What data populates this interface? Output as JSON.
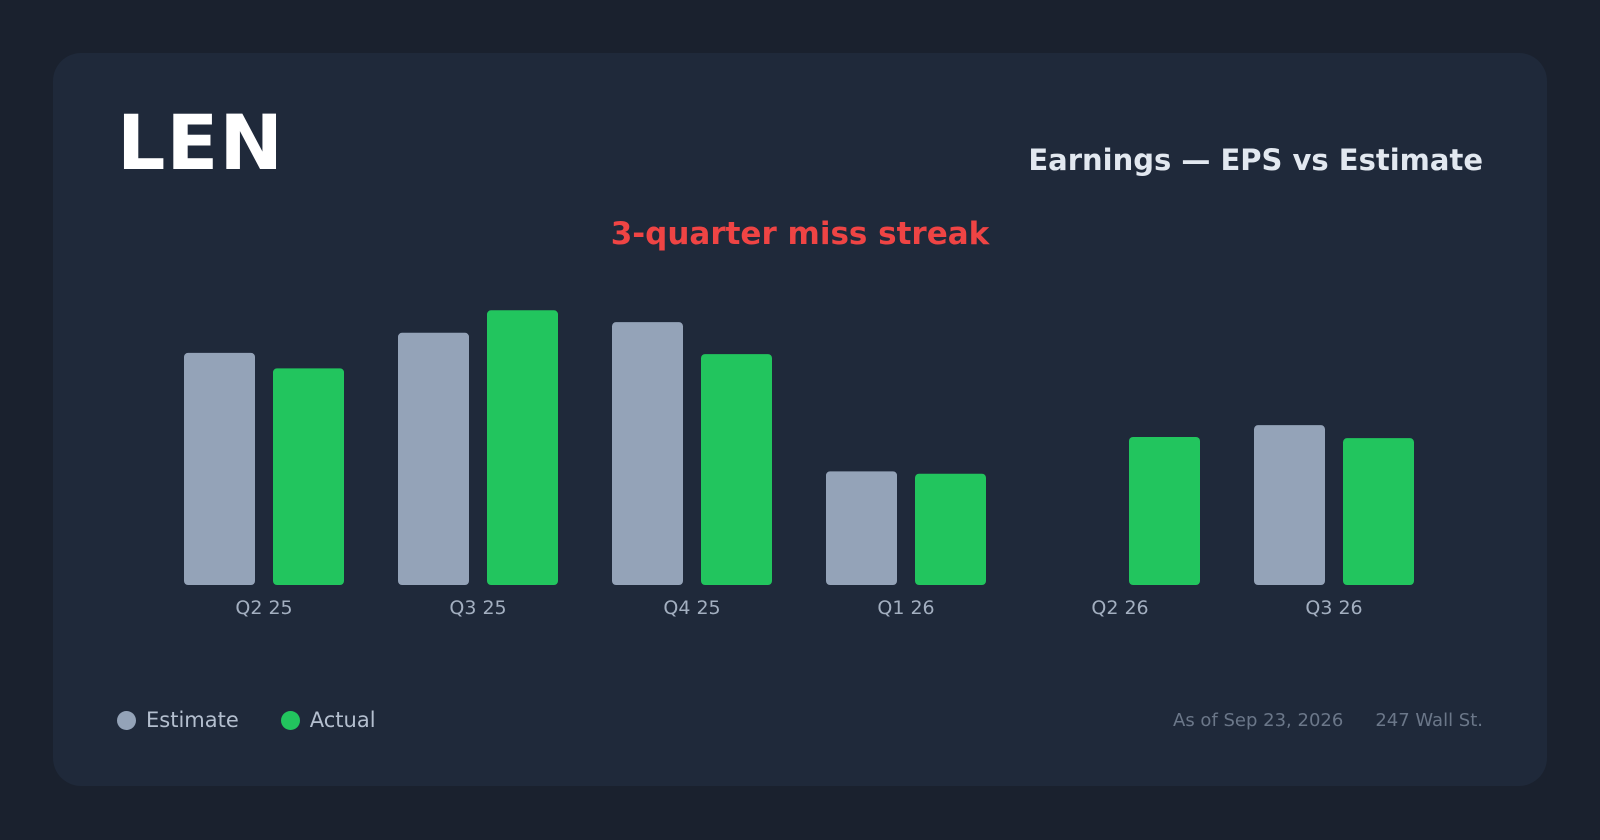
{
  "header": {
    "ticker": "LEN",
    "subtitle": "Earnings — EPS vs Estimate",
    "headline": "3-quarter miss streak"
  },
  "colors": {
    "estimate": "#94a3b8",
    "actual": "#22c55e",
    "headline": "#ef4444"
  },
  "legend": {
    "estimate_label": "Estimate",
    "actual_label": "Actual"
  },
  "footer": {
    "as_of": "As of Sep 23, 2026",
    "source": "247 Wall St."
  },
  "chart_data": {
    "type": "bar",
    "categories": [
      "Q2 25",
      "Q3 25",
      "Q4 25",
      "Q1 26",
      "Q2 26",
      "Q3 26"
    ],
    "series": [
      {
        "name": "Estimate",
        "values": [
          1.96,
          2.13,
          2.22,
          0.96,
          null,
          1.35
        ]
      },
      {
        "name": "Actual",
        "values": [
          1.83,
          2.32,
          1.95,
          0.94,
          1.25,
          1.24
        ]
      }
    ],
    "ylim": [
      0,
      2.5
    ]
  }
}
